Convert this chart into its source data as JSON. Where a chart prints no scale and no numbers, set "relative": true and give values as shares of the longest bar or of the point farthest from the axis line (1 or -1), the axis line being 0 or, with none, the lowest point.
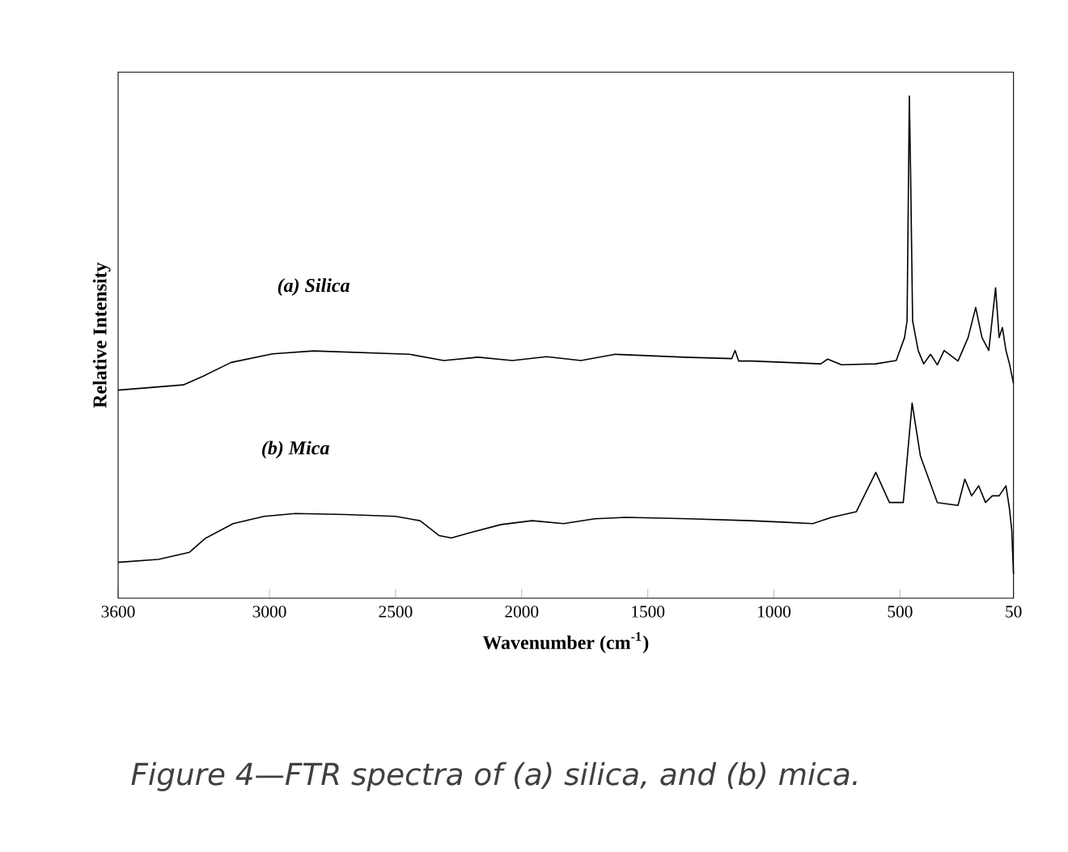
{
  "chart_data": {
    "type": "line",
    "relative": true,
    "xlabel": "Wavenumber (cm$^{-1}$)",
    "ylabel": "Relative Intensity",
    "xlim": [
      3600,
      50
    ],
    "xticks": [
      3600,
      3000,
      2500,
      2000,
      1500,
      1000,
      500,
      50
    ],
    "legend": false,
    "grid": false,
    "marker": "none",
    "line_style": "solid",
    "annotations": [
      "Figure 4—FTR spectra of (a) silica, and (b) mica."
    ],
    "series": [
      {
        "name": "(a) Silica",
        "color": "#000000",
        "x": [
          3600,
          3342,
          3260,
          3152,
          2988,
          2825,
          2445,
          2309,
          2173,
          2037,
          1901,
          1765,
          1629,
          1358,
          1167,
          1154,
          1140,
          1086,
          814,
          787,
          732,
          597,
          515,
          482,
          472,
          466,
          463,
          458,
          450,
          428,
          406,
          379,
          352,
          325,
          270,
          230,
          200,
          175,
          148,
          121,
          107,
          94,
          80,
          66,
          50
        ],
        "values": [
          0.385,
          0.396,
          0.415,
          0.443,
          0.461,
          0.467,
          0.46,
          0.447,
          0.454,
          0.447,
          0.455,
          0.447,
          0.46,
          0.454,
          0.451,
          0.468,
          0.446,
          0.446,
          0.44,
          0.45,
          0.438,
          0.44,
          0.447,
          0.495,
          0.53,
          0.841,
          1,
          0.841,
          0.53,
          0.468,
          0.44,
          0.46,
          0.438,
          0.468,
          0.446,
          0.495,
          0.558,
          0.495,
          0.468,
          0.599,
          0.495,
          0.516,
          0.468,
          0.44,
          0.399
        ]
      },
      {
        "name": "(b) Mica",
        "color": "#000000",
        "x": [
          3600,
          3440,
          3317,
          3255,
          3144,
          3021,
          2897,
          2699,
          2501,
          2403,
          2328,
          2279,
          2205,
          2081,
          1958,
          1834,
          1710,
          1587,
          1340,
          1093,
          969,
          846,
          771,
          673,
          596,
          542,
          487,
          452,
          419,
          352,
          270,
          243,
          216,
          188,
          161,
          134,
          107,
          80,
          66,
          57,
          50
        ],
        "values": [
          0.025,
          0.031,
          0.046,
          0.075,
          0.106,
          0.121,
          0.127,
          0.125,
          0.121,
          0.112,
          0.081,
          0.076,
          0.087,
          0.104,
          0.112,
          0.106,
          0.116,
          0.119,
          0.116,
          0.112,
          0.109,
          0.106,
          0.119,
          0.131,
          0.213,
          0.15,
          0.15,
          0.358,
          0.247,
          0.15,
          0.144,
          0.199,
          0.164,
          0.185,
          0.15,
          0.164,
          0.164,
          0.185,
          0.137,
          0.093,
          0
        ]
      }
    ]
  }
}
